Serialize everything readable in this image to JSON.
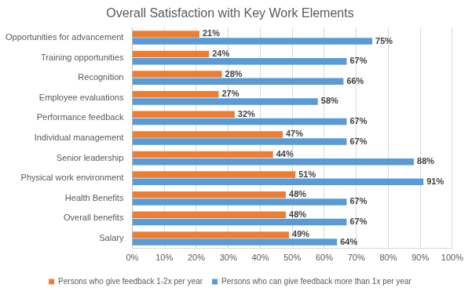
{
  "chart_data": {
    "type": "bar",
    "orientation": "horizontal",
    "title": "Overall Satisfaction with Key Work Elements",
    "categories": [
      "Opportunities for advancement",
      "Training opportunities",
      "Recognition",
      "Employee evaluations",
      "Performance feedback",
      "Individual management",
      "Senior leadership",
      "Physical work environment",
      "Health Benefits",
      "Overall benefits",
      "Salary"
    ],
    "series": [
      {
        "name": "Persons who give feedback 1-2x per year",
        "color": "#ed7d31",
        "values": [
          21,
          24,
          28,
          27,
          32,
          47,
          44,
          51,
          48,
          48,
          49
        ],
        "value_labels": [
          "21%",
          "24%",
          "28%",
          "27%",
          "32%",
          "47%",
          "44%",
          "51%",
          "48%",
          "48%",
          "49%"
        ]
      },
      {
        "name": "Persons who can give feedback more than 1x per year",
        "color": "#5b9bd5",
        "values": [
          75,
          67,
          66,
          58,
          67,
          67,
          88,
          91,
          67,
          67,
          64
        ],
        "value_labels": [
          "75%",
          "67%",
          "66%",
          "58%",
          "67%",
          "67%",
          "88%",
          "91%",
          "67%",
          "67%",
          "64%"
        ]
      }
    ],
    "xlim": [
      0,
      100
    ],
    "xticks": [
      {
        "value": 0,
        "label": "0%"
      },
      {
        "value": 10,
        "label": "10%"
      },
      {
        "value": 20,
        "label": "20%"
      },
      {
        "value": 30,
        "label": "30%"
      },
      {
        "value": 40,
        "label": "40%"
      },
      {
        "value": 50,
        "label": "50%"
      },
      {
        "value": 60,
        "label": "60%"
      },
      {
        "value": 70,
        "label": "70%"
      },
      {
        "value": 80,
        "label": "80%"
      },
      {
        "value": 90,
        "label": "90%"
      },
      {
        "value": 100,
        "label": "100%"
      }
    ],
    "grid": true,
    "legend": "bottom",
    "data_labels": true
  }
}
